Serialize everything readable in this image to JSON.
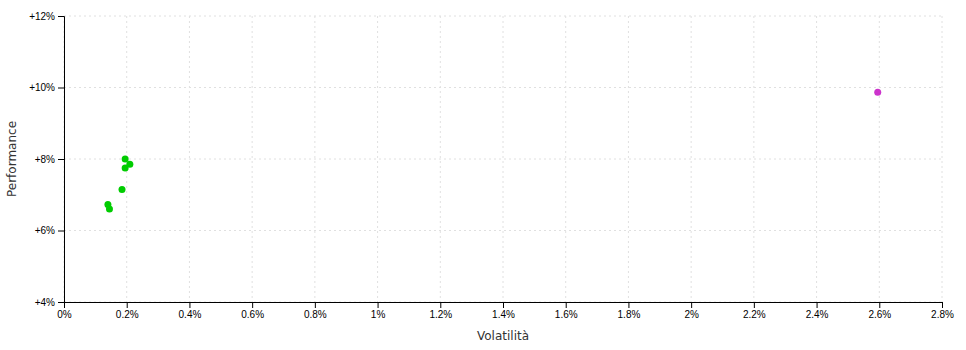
{
  "chart_data": {
    "type": "scatter",
    "xlabel": "Volatilità",
    "ylabel": "Performance",
    "xlim": [
      0,
      0.028
    ],
    "ylim": [
      0.04,
      0.12
    ],
    "xticks": [
      {
        "value": 0.0,
        "label": "0%"
      },
      {
        "value": 0.002,
        "label": "0.2%"
      },
      {
        "value": 0.004,
        "label": "0.4%"
      },
      {
        "value": 0.006,
        "label": "0.6%"
      },
      {
        "value": 0.008,
        "label": "0.8%"
      },
      {
        "value": 0.01,
        "label": "1%"
      },
      {
        "value": 0.012,
        "label": "1.2%"
      },
      {
        "value": 0.014,
        "label": "1.4%"
      },
      {
        "value": 0.016,
        "label": "1.6%"
      },
      {
        "value": 0.018,
        "label": "1.8%"
      },
      {
        "value": 0.02,
        "label": "2%"
      },
      {
        "value": 0.022,
        "label": "2.2%"
      },
      {
        "value": 0.024,
        "label": "2.4%"
      },
      {
        "value": 0.026,
        "label": "2.6%"
      },
      {
        "value": 0.028,
        "label": "2.8%"
      }
    ],
    "yticks": [
      {
        "value": 0.04,
        "label": "+4%"
      },
      {
        "value": 0.06,
        "label": "+6%"
      },
      {
        "value": 0.08,
        "label": "+8%"
      },
      {
        "value": 0.1,
        "label": "+10%"
      },
      {
        "value": 0.12,
        "label": "+12%"
      }
    ],
    "grid": true,
    "series": [
      {
        "color": "#00cc00",
        "x": [
          0.00195,
          0.0021,
          0.00195,
          0.00185,
          0.0014,
          0.00145
        ],
        "values": [
          0.08,
          0.0785,
          0.0775,
          0.0715,
          0.0673,
          0.066
        ]
      },
      {
        "color": "#cc33cc",
        "x": [
          0.02595
        ],
        "values": [
          0.0987
        ]
      }
    ]
  }
}
